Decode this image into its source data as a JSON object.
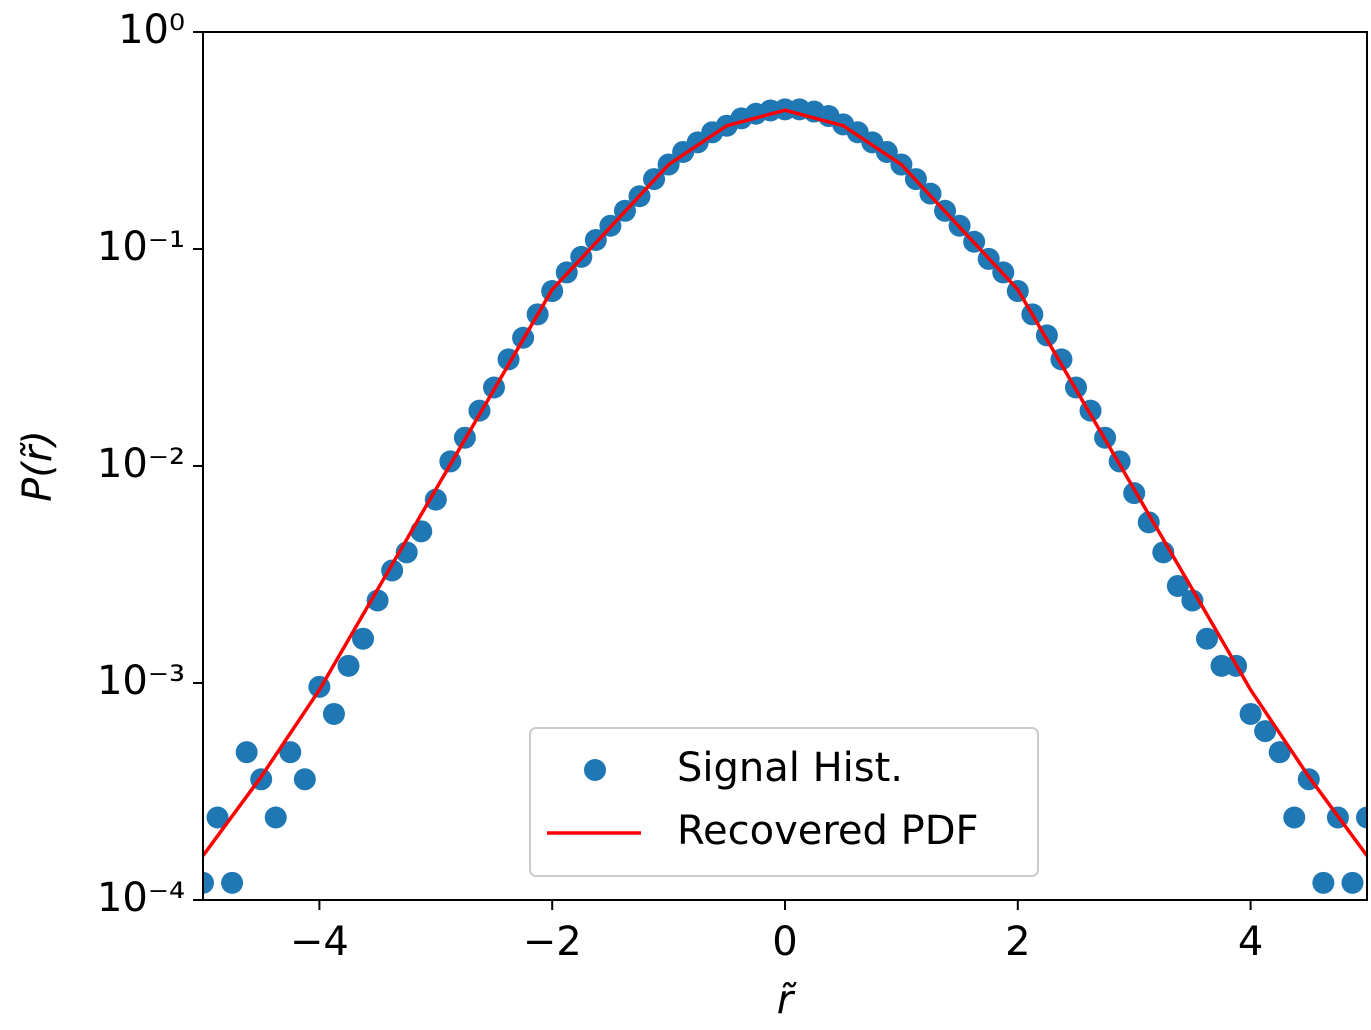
{
  "chart_data": {
    "type": "scatter",
    "xlabel": "r̃",
    "ylabel": "P(r̃)",
    "log_y": true,
    "legend": "lower center",
    "xlim": [
      -5,
      5
    ],
    "ylim": [
      0.0001,
      1
    ],
    "xticks": [
      {
        "value": -4,
        "label": "−4"
      },
      {
        "value": -2,
        "label": "−2"
      },
      0,
      2,
      4
    ],
    "yticks": [
      {
        "value": 0.0001,
        "label": "10⁻⁴"
      },
      {
        "value": 0.001,
        "label": "10⁻³"
      },
      {
        "value": 0.01,
        "label": "10⁻²"
      },
      {
        "value": 0.1,
        "label": "10⁻¹"
      },
      {
        "value": 1,
        "label": "10⁰"
      }
    ],
    "series": [
      {
        "name": "Signal Hist.",
        "type": "scatter",
        "color": "#1f77b4",
        "x": [
          -5,
          -4.875,
          -4.75,
          -4.625,
          -4.5,
          -4.375,
          -4.25,
          -4.125,
          -4,
          -3.875,
          -3.75,
          -3.625,
          -3.5,
          -3.375,
          -3.25,
          -3.125,
          -3,
          -2.875,
          -2.75,
          -2.625,
          -2.5,
          -2.375,
          -2.25,
          -2.125,
          -2,
          -1.875,
          -1.75,
          -1.625,
          -1.5,
          -1.375,
          -1.25,
          -1.125,
          -1,
          -0.875,
          -0.75,
          -0.625,
          -0.5,
          -0.375,
          -0.25,
          -0.125,
          0,
          0.125,
          0.25,
          0.375,
          0.5,
          0.625,
          0.75,
          0.875,
          1,
          1.125,
          1.25,
          1.375,
          1.5,
          1.625,
          1.75,
          1.875,
          2,
          2.125,
          2.25,
          2.375,
          2.5,
          2.625,
          2.75,
          2.875,
          3,
          3.125,
          3.25,
          3.375,
          3.5,
          3.625,
          3.75,
          3.875,
          4,
          4.125,
          4.25,
          4.375,
          4.5,
          4.625,
          4.75,
          4.875,
          5
        ],
        "values": [
          0.00012,
          0.00024,
          0.00012,
          0.00048,
          0.00036,
          0.00024,
          0.00048,
          0.00036,
          0.00096,
          0.00072,
          0.0012,
          0.0016,
          0.0024,
          0.0033,
          0.004,
          0.005,
          0.007,
          0.0105,
          0.0135,
          0.018,
          0.023,
          0.031,
          0.039,
          0.05,
          0.064,
          0.078,
          0.092,
          0.11,
          0.128,
          0.15,
          0.175,
          0.21,
          0.245,
          0.28,
          0.31,
          0.345,
          0.37,
          0.4,
          0.42,
          0.435,
          0.44,
          0.44,
          0.43,
          0.41,
          0.375,
          0.345,
          0.31,
          0.28,
          0.245,
          0.21,
          0.18,
          0.15,
          0.128,
          0.108,
          0.09,
          0.078,
          0.064,
          0.05,
          0.04,
          0.031,
          0.023,
          0.018,
          0.0135,
          0.0105,
          0.0075,
          0.0055,
          0.004,
          0.0028,
          0.0024,
          0.0016,
          0.0012,
          0.0012,
          0.00072,
          0.0006,
          0.00048,
          0.00024,
          0.00036,
          0.00012,
          0.00024,
          0.00012,
          0.00024
        ]
      },
      {
        "name": "Recovered PDF",
        "type": "line",
        "color": "#ff0000",
        "x": [
          -5,
          -4.5,
          -4,
          -3.5,
          -3,
          -2.5,
          -2,
          -1.5,
          -1,
          -0.5,
          0,
          0.5,
          1,
          1.5,
          2,
          2.5,
          3,
          3.5,
          4,
          4.5,
          5
        ],
        "values": [
          0.00016,
          0.00037,
          0.00093,
          0.0027,
          0.0078,
          0.0225,
          0.065,
          0.126,
          0.245,
          0.37,
          0.436,
          0.37,
          0.245,
          0.126,
          0.065,
          0.0225,
          0.0078,
          0.0027,
          0.00093,
          0.00037,
          0.00016
        ]
      }
    ]
  }
}
